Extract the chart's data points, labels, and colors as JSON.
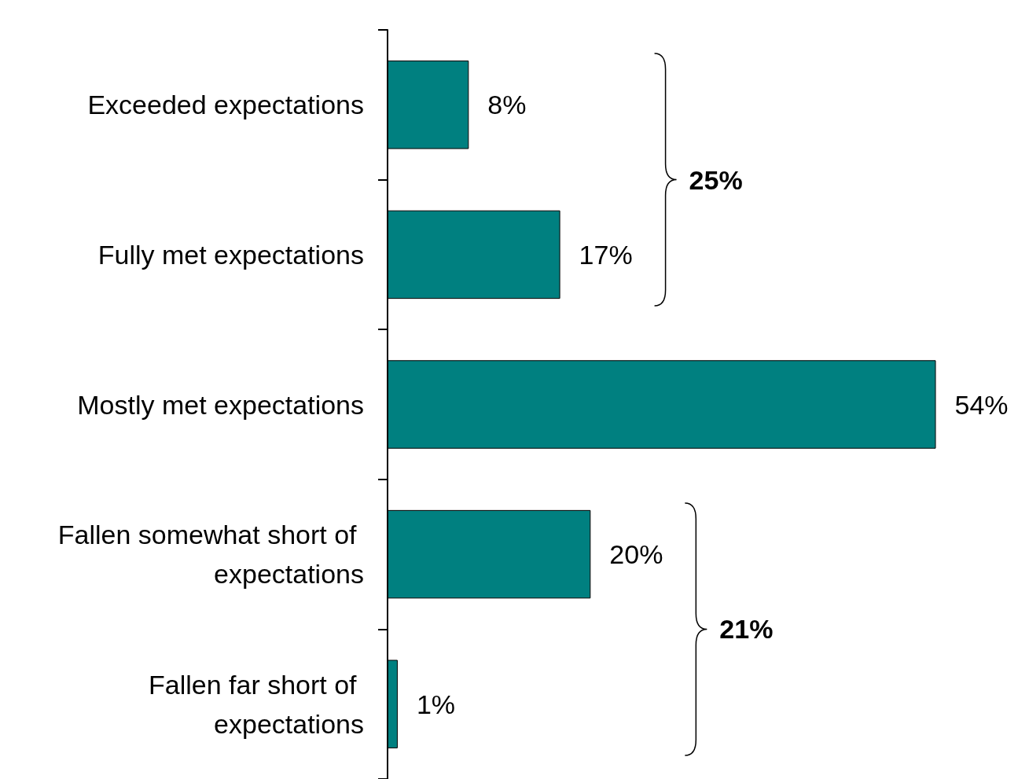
{
  "chart_data": {
    "type": "bar",
    "orientation": "horizontal",
    "categories": [
      "Exceeded expectations",
      "Fully met expectations",
      "Mostly met expectations",
      "Fallen somewhat short of expectations",
      "Fallen far short of expectations"
    ],
    "values": [
      8,
      17,
      54,
      20,
      1
    ],
    "value_labels": [
      "8%",
      "17%",
      "54%",
      "20%",
      "1%"
    ],
    "color": "#008080",
    "annotations": [
      "25%",
      "21%"
    ],
    "tick_labels": "y"
  }
}
